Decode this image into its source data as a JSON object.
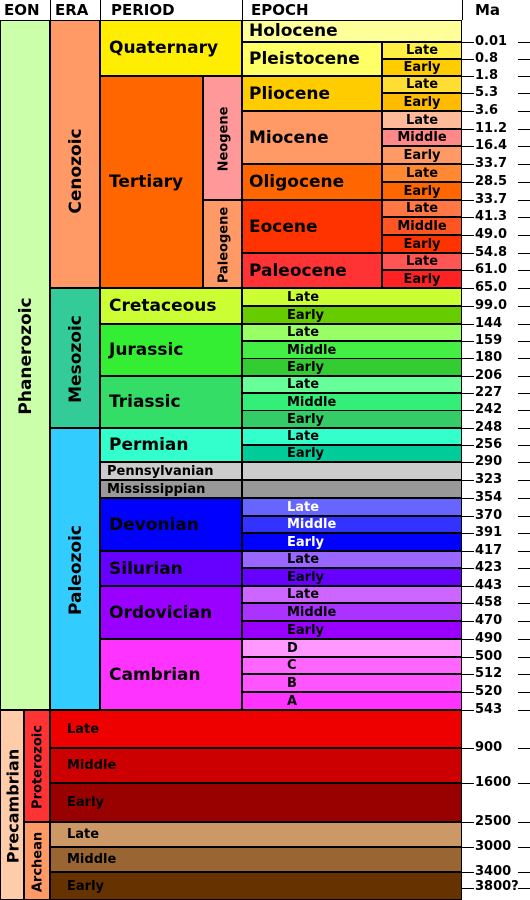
{
  "headers": {
    "eon": "EON",
    "era": "ERA",
    "period": "PERIOD",
    "epoch": "EPOCH",
    "ma": "Ma"
  },
  "colors": {
    "line": "#000000"
  },
  "eons": [
    {
      "name": "Phanerozoic",
      "color": "#ccffaa"
    },
    {
      "name": "Precambrian",
      "color": "#ffccaa"
    }
  ],
  "eras": [
    {
      "name": "Cenozoic",
      "color": "#ff9966"
    },
    {
      "name": "Mesozoic",
      "color": "#33cc99"
    },
    {
      "name": "Paleozoic",
      "color": "#33ccff"
    },
    {
      "name": "Proterozoic",
      "color": "#ff3333"
    },
    {
      "name": "Archean",
      "color": "#ff9966"
    }
  ],
  "subperiods": [
    {
      "name": "Neogene",
      "color": "#ff9999"
    },
    {
      "name": "Paleogene",
      "color": "#ff9966"
    }
  ],
  "periods": [
    {
      "name": "Quaternary",
      "color": "#ffee00"
    },
    {
      "name": "Tertiary",
      "color": "#ff6600"
    },
    {
      "name": "Cretaceous",
      "color": "#ccff33"
    },
    {
      "name": "Jurassic",
      "color": "#33ee33"
    },
    {
      "name": "Triassic",
      "color": "#33dd66"
    },
    {
      "name": "Permian",
      "color": "#33ffcc"
    },
    {
      "name": "Pennsylvanian",
      "color": "#cccccc"
    },
    {
      "name": "Mississippian",
      "color": "#999999"
    },
    {
      "name": "Devonian",
      "color": "#0000ff"
    },
    {
      "name": "Silurian",
      "color": "#6600ff"
    },
    {
      "name": "Ordovician",
      "color": "#9900ff"
    },
    {
      "name": "Cambrian",
      "color": "#ff33ff"
    },
    {
      "name": "Late",
      "color": "#ee0000"
    },
    {
      "name": "Middle",
      "color": "#cc0000"
    },
    {
      "name": "Early",
      "color": "#990000"
    },
    {
      "name": "Late",
      "color": "#cc9966"
    },
    {
      "name": "Middle",
      "color": "#996633"
    },
    {
      "name": "Early",
      "color": "#663300"
    }
  ],
  "epochs": [
    {
      "name": "Holocene",
      "color": "#ffff99"
    },
    {
      "name": "Pleistocene",
      "color": "#ffff66"
    },
    {
      "name": "Pliocene",
      "color": "#ffcc00"
    },
    {
      "name": "Miocene",
      "color": "#ff9966"
    },
    {
      "name": "Oligocene",
      "color": "#ff6600"
    },
    {
      "name": "Eocene",
      "color": "#ff3300"
    },
    {
      "name": "Paleocene",
      "color": "#ff3333"
    }
  ],
  "subepochs": [
    {
      "name": "Late",
      "color": "#ffee44"
    },
    {
      "name": "Early",
      "color": "#ffcc00"
    },
    {
      "name": "Late",
      "color": "#ffdd33"
    },
    {
      "name": "Early",
      "color": "#ffbb00"
    },
    {
      "name": "Late",
      "color": "#ffbb99"
    },
    {
      "name": "Middle",
      "color": "#ff8888"
    },
    {
      "name": "Early",
      "color": "#ff9966"
    },
    {
      "name": "Late",
      "color": "#ff8833"
    },
    {
      "name": "Early",
      "color": "#ff6600"
    },
    {
      "name": "Late",
      "color": "#ff7744"
    },
    {
      "name": "Middle",
      "color": "#ff5522"
    },
    {
      "name": "Early",
      "color": "#ff3300"
    },
    {
      "name": "Late",
      "color": "#ff5555"
    },
    {
      "name": "Early",
      "color": "#ff2222"
    },
    {
      "name": "Late",
      "color": "#ccff33"
    },
    {
      "name": "Early",
      "color": "#66cc00"
    },
    {
      "name": "Late",
      "color": "#99ff66"
    },
    {
      "name": "Middle",
      "color": "#44ee44"
    },
    {
      "name": "Early",
      "color": "#33cc33"
    },
    {
      "name": "Late",
      "color": "#66ff99"
    },
    {
      "name": "Middle",
      "color": "#33ee77"
    },
    {
      "name": "Early",
      "color": "#33cc66"
    },
    {
      "name": "Late",
      "color": "#33ffcc"
    },
    {
      "name": "Early",
      "color": "#00cc99"
    },
    {
      "name": "",
      "color": "#cccccc"
    },
    {
      "name": "",
      "color": "#999999"
    },
    {
      "name": "Late",
      "color": "#6666ff"
    },
    {
      "name": "Middle",
      "color": "#3333ff"
    },
    {
      "name": "Early",
      "color": "#0000ff"
    },
    {
      "name": "Late",
      "color": "#9966ff"
    },
    {
      "name": "Early",
      "color": "#6600ff"
    },
    {
      "name": "Late",
      "color": "#cc66ff"
    },
    {
      "name": "Middle",
      "color": "#aa33ff"
    },
    {
      "name": "Early",
      "color": "#9900ff"
    },
    {
      "name": "D",
      "color": "#ff99ff"
    },
    {
      "name": "C",
      "color": "#ff66ff"
    },
    {
      "name": "B",
      "color": "#ff55ff"
    },
    {
      "name": "A",
      "color": "#ff33ff"
    }
  ],
  "ma_labels": [
    "0.01",
    "0.8",
    "1.8",
    "5.3",
    "3.6",
    "11.2",
    "16.4",
    "33.7",
    "28.5",
    "33.7",
    "41.3",
    "49.0",
    "54.8",
    "61.0",
    "65.0",
    "99.0",
    "144",
    "159",
    "180",
    "206",
    "227",
    "242",
    "248",
    "256",
    "290",
    "323",
    "354",
    "370",
    "391",
    "417",
    "423",
    "443",
    "458",
    "470",
    "490",
    "500",
    "512",
    "520",
    "543",
    "900",
    "1600",
    "2500",
    "3000",
    "3400",
    "3800?"
  ]
}
